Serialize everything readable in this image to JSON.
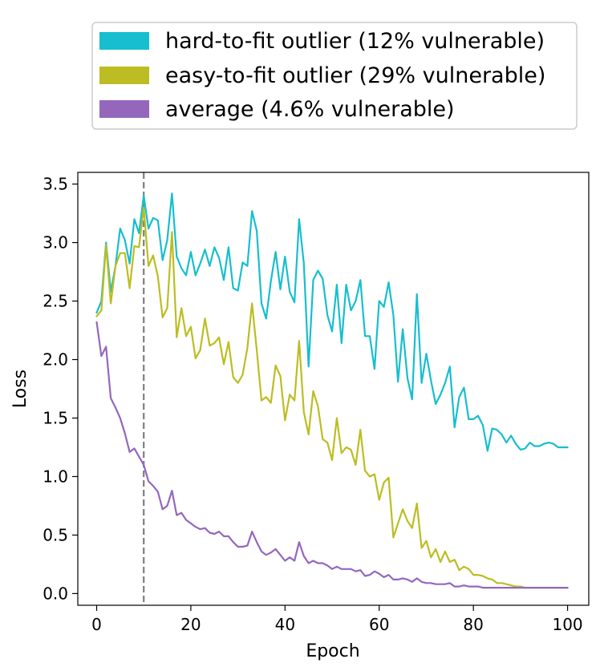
{
  "chart_data": {
    "type": "line",
    "title": "",
    "xlabel": "Epoch",
    "ylabel": "Loss",
    "xlim": [
      -4,
      104.5
    ],
    "ylim": [
      -0.1,
      3.6
    ],
    "xticks": [
      0,
      20,
      40,
      60,
      80,
      100
    ],
    "yticks": [
      0.0,
      0.5,
      1.0,
      1.5,
      2.0,
      2.5,
      3.0,
      3.5
    ],
    "xtick_labels": [
      "0",
      "20",
      "40",
      "60",
      "80",
      "100"
    ],
    "ytick_labels": [
      "0.0",
      "0.5",
      "1.0",
      "1.5",
      "2.0",
      "2.5",
      "3.0",
      "3.5"
    ],
    "vline": {
      "x": 10,
      "color": "#7f7f7f",
      "style": "dashed"
    },
    "legend_position": "top",
    "grid": false,
    "series": [
      {
        "name": "hard-to-fit outlier (12% vulnerable)",
        "color": "#17becf",
        "x": [
          0,
          1,
          2,
          3,
          4,
          5,
          6,
          7,
          8,
          9,
          10,
          11,
          12,
          13,
          14,
          15,
          16,
          17,
          18,
          19,
          20,
          21,
          22,
          23,
          24,
          25,
          26,
          27,
          28,
          29,
          30,
          31,
          32,
          33,
          34,
          35,
          36,
          37,
          38,
          39,
          40,
          41,
          42,
          43,
          44,
          45,
          46,
          47,
          48,
          49,
          50,
          51,
          52,
          53,
          54,
          55,
          56,
          57,
          58,
          59,
          60,
          61,
          62,
          63,
          64,
          65,
          66,
          67,
          68,
          69,
          70,
          71,
          72,
          73,
          74,
          75,
          76,
          77,
          78,
          79,
          80,
          81,
          82,
          83,
          84,
          85,
          86,
          87,
          88,
          89,
          90,
          91,
          92,
          93,
          94,
          95,
          96,
          97,
          98,
          99,
          100
        ],
        "values": [
          2.4,
          2.5,
          3.0,
          2.58,
          2.8,
          3.12,
          3.02,
          2.82,
          3.2,
          3.08,
          3.4,
          3.12,
          3.21,
          3.19,
          2.85,
          3.02,
          3.42,
          2.88,
          2.78,
          2.72,
          2.92,
          2.72,
          2.82,
          2.94,
          2.8,
          2.96,
          2.87,
          2.68,
          2.96,
          2.61,
          2.59,
          2.83,
          2.8,
          3.27,
          3.1,
          2.48,
          2.35,
          2.67,
          2.92,
          2.6,
          2.88,
          2.58,
          2.49,
          3.2,
          2.82,
          1.94,
          2.68,
          2.76,
          2.69,
          2.38,
          2.24,
          2.64,
          2.14,
          2.64,
          2.42,
          2.5,
          2.68,
          2.2,
          2.2,
          1.92,
          2.5,
          2.45,
          2.66,
          2.38,
          1.81,
          2.26,
          1.84,
          1.66,
          2.56,
          1.8,
          2.05,
          1.82,
          1.62,
          1.7,
          1.8,
          1.94,
          1.42,
          1.68,
          1.76,
          1.49,
          1.49,
          1.52,
          1.44,
          1.22,
          1.41,
          1.4,
          1.36,
          1.29,
          1.35,
          1.28,
          1.23,
          1.24,
          1.29,
          1.26,
          1.26,
          1.28,
          1.29,
          1.28,
          1.25,
          1.25,
          1.25
        ]
      },
      {
        "name": "easy-to-fit outlier (29% vulnerable)",
        "color": "#bcbd22",
        "x": [
          0,
          1,
          2,
          3,
          4,
          5,
          6,
          7,
          8,
          9,
          10,
          11,
          12,
          13,
          14,
          15,
          16,
          17,
          18,
          19,
          20,
          21,
          22,
          23,
          24,
          25,
          26,
          27,
          28,
          29,
          30,
          31,
          32,
          33,
          34,
          35,
          36,
          37,
          38,
          39,
          40,
          41,
          42,
          43,
          44,
          45,
          46,
          47,
          48,
          49,
          50,
          51,
          52,
          53,
          54,
          55,
          56,
          57,
          58,
          59,
          60,
          61,
          62,
          63,
          64,
          65,
          66,
          67,
          68,
          69,
          70,
          71,
          72,
          73,
          74,
          75,
          76,
          77,
          78,
          79,
          80,
          81,
          82,
          83,
          84,
          85,
          86,
          87,
          88,
          89,
          90,
          91,
          92,
          93,
          94,
          95,
          96,
          97,
          98,
          99,
          100
        ],
        "values": [
          2.37,
          2.42,
          2.98,
          2.48,
          2.8,
          2.91,
          2.91,
          2.61,
          2.97,
          2.96,
          3.3,
          2.8,
          2.89,
          2.71,
          2.36,
          2.44,
          3.09,
          2.19,
          2.44,
          2.2,
          2.28,
          2.01,
          2.08,
          2.35,
          2.12,
          2.14,
          2.19,
          1.96,
          2.15,
          1.85,
          1.8,
          1.87,
          2.1,
          2.48,
          2.08,
          1.65,
          1.68,
          1.63,
          1.95,
          1.86,
          1.48,
          1.7,
          1.65,
          2.16,
          1.55,
          1.36,
          1.73,
          1.6,
          1.32,
          1.29,
          1.14,
          1.5,
          1.2,
          1.25,
          1.23,
          1.1,
          1.4,
          1.05,
          1.0,
          1.02,
          0.8,
          0.95,
          0.99,
          0.48,
          0.6,
          0.72,
          0.62,
          0.56,
          0.77,
          0.39,
          0.45,
          0.31,
          0.38,
          0.27,
          0.36,
          0.27,
          0.29,
          0.2,
          0.23,
          0.21,
          0.16,
          0.16,
          0.15,
          0.13,
          0.12,
          0.09,
          0.09,
          0.08,
          0.07,
          0.06,
          0.06,
          0.05,
          0.05,
          0.05,
          0.05,
          0.05,
          0.05,
          0.05,
          0.05,
          0.05,
          0.05
        ]
      },
      {
        "name": "average (4.6% vulnerable)",
        "color": "#9467bd",
        "x": [
          0,
          1,
          2,
          3,
          4,
          5,
          6,
          7,
          8,
          9,
          10,
          11,
          12,
          13,
          14,
          15,
          16,
          17,
          18,
          19,
          20,
          21,
          22,
          23,
          24,
          25,
          26,
          27,
          28,
          29,
          30,
          31,
          32,
          33,
          34,
          35,
          36,
          37,
          38,
          39,
          40,
          41,
          42,
          43,
          44,
          45,
          46,
          47,
          48,
          49,
          50,
          51,
          52,
          53,
          54,
          55,
          56,
          57,
          58,
          59,
          60,
          61,
          62,
          63,
          64,
          65,
          66,
          67,
          68,
          69,
          70,
          71,
          72,
          73,
          74,
          75,
          76,
          77,
          78,
          79,
          80,
          81,
          82,
          83,
          84,
          85,
          86,
          87,
          88,
          89,
          90,
          91,
          92,
          93,
          94,
          95,
          96,
          97,
          98,
          99,
          100
        ],
        "values": [
          2.32,
          2.03,
          2.11,
          1.67,
          1.59,
          1.5,
          1.37,
          1.21,
          1.24,
          1.17,
          1.1,
          0.96,
          0.92,
          0.87,
          0.72,
          0.75,
          0.88,
          0.67,
          0.69,
          0.63,
          0.6,
          0.57,
          0.55,
          0.56,
          0.52,
          0.51,
          0.53,
          0.49,
          0.49,
          0.44,
          0.4,
          0.4,
          0.41,
          0.53,
          0.44,
          0.36,
          0.33,
          0.35,
          0.38,
          0.33,
          0.28,
          0.31,
          0.28,
          0.44,
          0.32,
          0.26,
          0.28,
          0.26,
          0.26,
          0.24,
          0.21,
          0.23,
          0.21,
          0.21,
          0.21,
          0.19,
          0.2,
          0.15,
          0.16,
          0.19,
          0.17,
          0.14,
          0.16,
          0.12,
          0.12,
          0.13,
          0.12,
          0.1,
          0.13,
          0.1,
          0.09,
          0.09,
          0.08,
          0.08,
          0.08,
          0.09,
          0.06,
          0.06,
          0.07,
          0.06,
          0.06,
          0.06,
          0.05,
          0.05,
          0.05,
          0.05,
          0.05,
          0.05,
          0.05,
          0.05,
          0.05,
          0.05,
          0.05,
          0.05,
          0.05,
          0.05,
          0.05,
          0.05,
          0.05,
          0.05,
          0.05
        ]
      }
    ]
  }
}
